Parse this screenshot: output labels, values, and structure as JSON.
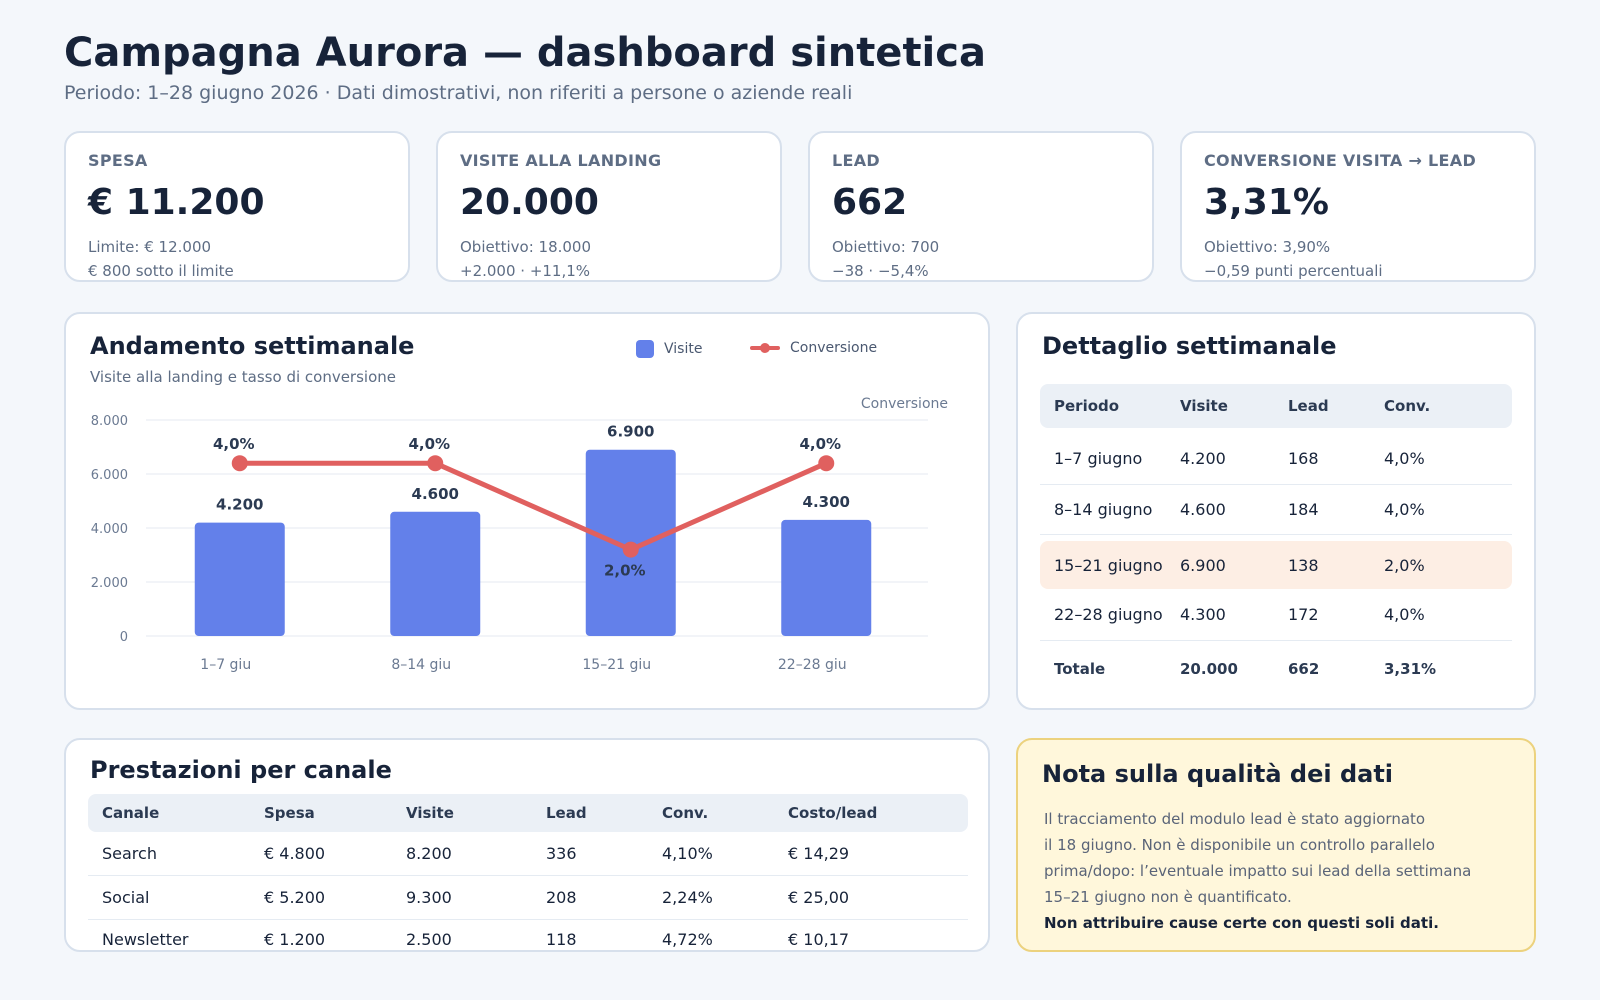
{
  "header": {
    "title": "Campagna Aurora — dashboard sintetica",
    "subtitle": "Periodo: 1–28 giugno 2026 · Dati dimostrativi, non riferiti a persone o aziende reali"
  },
  "kpis": [
    {
      "label": "SPESA",
      "value": "€ 11.200",
      "line1": "Limite: € 12.000",
      "line2": "€ 800 sotto il limite"
    },
    {
      "label": "VISITE ALLA LANDING",
      "value": "20.000",
      "line1": "Obiettivo: 18.000",
      "line2": "+2.000 · +11,1%"
    },
    {
      "label": "LEAD",
      "value": "662",
      "line1": "Obiettivo: 700",
      "line2": "−38 · −5,4%"
    },
    {
      "label": "CONVERSIONE VISITA → LEAD",
      "value": "3,31%",
      "line1": "Obiettivo: 3,90%",
      "line2": "−0,59 punti percentuali"
    }
  ],
  "trend_panel": {
    "title": "Andamento settimanale",
    "subtitle": "Visite alla landing e tasso di conversione",
    "legend_bar": "Visite",
    "legend_line": "Conversione"
  },
  "chart_data": {
    "type": "bar",
    "categories": [
      "1–7 giu",
      "8–14 giu",
      "15–21 giu",
      "22–28 giu"
    ],
    "series": [
      {
        "name": "Visite",
        "type": "bar",
        "values": [
          4200,
          4600,
          6900,
          4300
        ],
        "labels": [
          "4.200",
          "4.600",
          "6.900",
          "4.300"
        ]
      },
      {
        "name": "Conversione",
        "type": "line",
        "values": [
          4.0,
          4.0,
          2.0,
          4.0
        ],
        "labels": [
          "4,0%",
          "4,0%",
          "2,0%",
          "4,0%"
        ]
      }
    ],
    "ylim": [
      0,
      8000
    ],
    "yticks": [
      0,
      2000,
      4000,
      6000,
      8000
    ],
    "ytick_labels": [
      "0",
      "2.000",
      "4.000",
      "6.000",
      "8.000"
    ],
    "y2label": "Conversione",
    "y2lim": [
      0,
      5
    ],
    "grid": true,
    "legend": "top-right",
    "colors": {
      "bar": "#6380ea",
      "line": "#e0605f"
    }
  },
  "weekly_panel": {
    "title": "Dettaglio settimanale",
    "headers": [
      "Periodo",
      "Visite",
      "Lead",
      "Conv."
    ],
    "rows": [
      {
        "periodo": "1–7 giugno",
        "visite": "4.200",
        "lead": "168",
        "conv": "4,0%"
      },
      {
        "periodo": "8–14 giugno",
        "visite": "4.600",
        "lead": "184",
        "conv": "4,0%"
      },
      {
        "periodo": "15–21 giugno",
        "visite": "6.900",
        "lead": "138",
        "conv": "2,0%"
      },
      {
        "periodo": "22–28 giugno",
        "visite": "4.300",
        "lead": "172",
        "conv": "4,0%"
      }
    ],
    "total": {
      "periodo": "Totale",
      "visite": "20.000",
      "lead": "662",
      "conv": "3,31%"
    }
  },
  "channel_panel": {
    "title": "Prestazioni per canale",
    "headers": [
      "Canale",
      "Spesa",
      "Visite",
      "Lead",
      "Conv.",
      "Costo/lead"
    ],
    "rows": [
      {
        "canale": "Search",
        "spesa": "€ 4.800",
        "visite": "8.200",
        "lead": "336",
        "conv": "4,10%",
        "costo": "€ 14,29"
      },
      {
        "canale": "Social",
        "spesa": "€ 5.200",
        "visite": "9.300",
        "lead": "208",
        "conv": "2,24%",
        "costo": "€ 25,00"
      },
      {
        "canale": "Newsletter",
        "spesa": "€ 1.200",
        "visite": "2.500",
        "lead": "118",
        "conv": "4,72%",
        "costo": "€ 10,17"
      }
    ]
  },
  "note_panel": {
    "title": "Nota sulla qualità dei dati",
    "lines": [
      "Il tracciamento del modulo lead è stato aggiornato",
      "il 18 giugno. Non è disponibile un controllo parallelo",
      "prima/dopo: l’eventuale impatto sui lead della settimana",
      "15–21 giugno non è quantificato."
    ],
    "bold": "Non attribuire cause certe con questi soli dati."
  }
}
